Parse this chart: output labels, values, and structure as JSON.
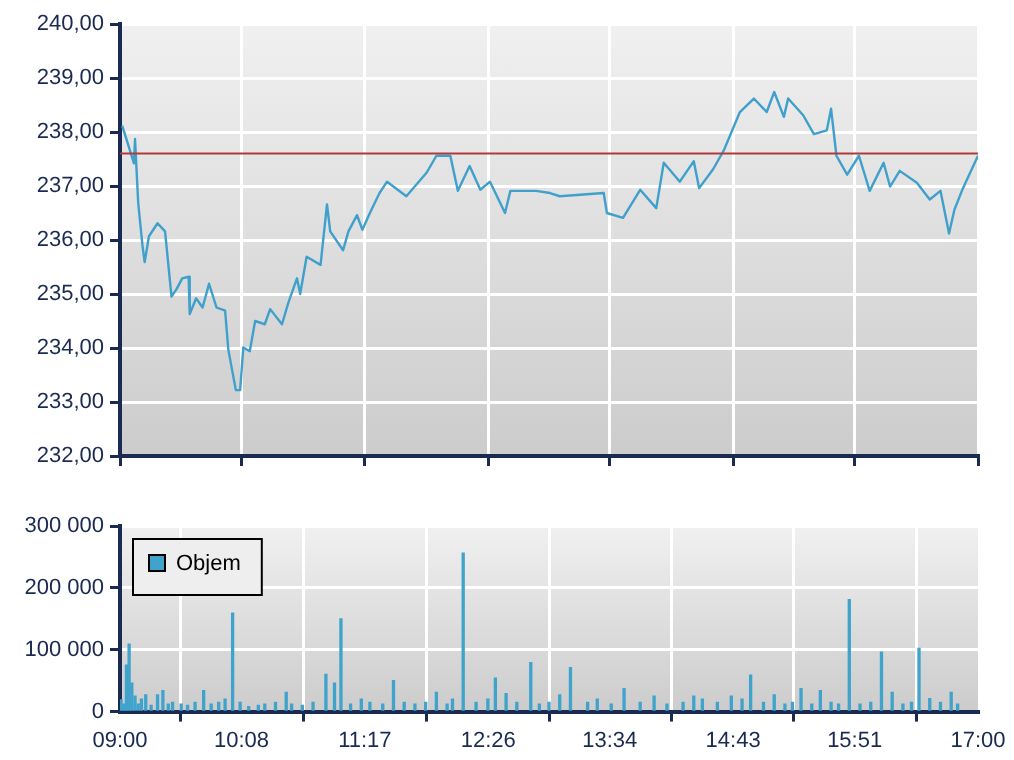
{
  "chart_data": [
    {
      "type": "line",
      "x": [
        9.02,
        9.06,
        9.13,
        9.14,
        9.17,
        9.21,
        9.23,
        9.27,
        9.35,
        9.42,
        9.45,
        9.48,
        9.53,
        9.58,
        9.64,
        9.65,
        9.71,
        9.77,
        9.83,
        9.9,
        9.98,
        10.01,
        10.08,
        10.12,
        10.15,
        10.21,
        10.26,
        10.35,
        10.4,
        10.51,
        10.57,
        10.65,
        10.68,
        10.74,
        10.87,
        10.93,
        10.96,
        11.08,
        11.13,
        11.21,
        11.26,
        11.33,
        11.42,
        11.49,
        11.67,
        11.86,
        11.95,
        12.08,
        12.15,
        12.26,
        12.36,
        12.45,
        12.59,
        12.64,
        12.88,
        13.01,
        13.1,
        13.51,
        13.54,
        13.69,
        13.85,
        14.0,
        14.07,
        14.22,
        14.35,
        14.4,
        14.53,
        14.63,
        14.78,
        14.91,
        15.03,
        15.1,
        15.19,
        15.23,
        15.37,
        15.47,
        15.59,
        15.63,
        15.68,
        15.78,
        15.89,
        15.99,
        16.12,
        16.18,
        16.27,
        16.43,
        16.55,
        16.65,
        16.73,
        16.78,
        16.86,
        17.0
      ],
      "values": [
        238.12,
        237.87,
        237.42,
        237.87,
        236.68,
        235.89,
        235.59,
        236.07,
        236.31,
        236.16,
        235.56,
        234.95,
        235.1,
        235.29,
        235.32,
        234.63,
        234.92,
        234.75,
        235.19,
        234.75,
        234.69,
        233.97,
        233.22,
        233.22,
        234.01,
        233.94,
        234.5,
        234.44,
        234.72,
        234.44,
        234.84,
        235.29,
        235.0,
        235.69,
        235.54,
        236.66,
        236.16,
        235.81,
        236.16,
        236.46,
        236.19,
        236.5,
        236.87,
        237.08,
        236.81,
        237.25,
        237.56,
        237.56,
        236.91,
        237.37,
        236.93,
        237.08,
        236.5,
        236.91,
        236.91,
        236.87,
        236.81,
        236.87,
        236.5,
        236.41,
        236.93,
        236.59,
        237.43,
        237.08,
        237.46,
        236.96,
        237.31,
        237.66,
        238.37,
        238.62,
        238.37,
        238.74,
        238.28,
        238.62,
        238.31,
        237.96,
        238.03,
        238.43,
        237.56,
        237.21,
        237.56,
        236.91,
        237.43,
        236.99,
        237.28,
        237.06,
        236.75,
        236.91,
        236.12,
        236.56,
        236.96,
        237.56
      ],
      "color": "#3fa0cc",
      "xlim": [
        9,
        17
      ],
      "xticks": [
        {
          "value": 9,
          "label": null
        },
        {
          "value": 10.1333,
          "label": null
        },
        {
          "value": 11.2833,
          "label": null
        },
        {
          "value": 12.4333,
          "label": null
        },
        {
          "value": 13.5667,
          "label": null
        },
        {
          "value": 14.7167,
          "label": null
        },
        {
          "value": 15.85,
          "label": null
        },
        {
          "value": 17,
          "label": null
        }
      ],
      "ylim": [
        232,
        240
      ],
      "yticks": [
        {
          "value": 232,
          "label": "232,00"
        },
        {
          "value": 233,
          "label": "233,00"
        },
        {
          "value": 234,
          "label": "234,00"
        },
        {
          "value": 235,
          "label": "235,00"
        },
        {
          "value": 236,
          "label": "236,00"
        },
        {
          "value": 237,
          "label": "237,00"
        },
        {
          "value": 238,
          "label": "238,00"
        },
        {
          "value": 239,
          "label": "239,00"
        },
        {
          "value": 240,
          "label": "240,00"
        }
      ],
      "ref_lines": [
        {
          "axis": "y",
          "value": 237.6,
          "color": "#b03a3a"
        }
      ],
      "tick_labels": "y",
      "grid": true,
      "legend": false
    },
    {
      "type": "bar",
      "series": [
        {
          "name": "Objem",
          "color": "#3fa3cc",
          "x": [
            9.01,
            9.035,
            9.06,
            9.085,
            9.11,
            9.14,
            9.17,
            9.2,
            9.24,
            9.29,
            9.35,
            9.4,
            9.45,
            9.49,
            9.57,
            9.63,
            9.7,
            9.78,
            9.85,
            9.92,
            9.98,
            10.05,
            10.12,
            10.2,
            10.29,
            10.35,
            10.45,
            10.55,
            10.6,
            10.7,
            10.8,
            10.92,
            11.0,
            11.06,
            11.15,
            11.25,
            11.33,
            11.45,
            11.55,
            11.65,
            11.75,
            11.85,
            11.95,
            12.05,
            12.1,
            12.2,
            12.32,
            12.43,
            12.5,
            12.6,
            12.7,
            12.83,
            12.91,
            13.0,
            13.1,
            13.2,
            13.36,
            13.45,
            13.58,
            13.7,
            13.85,
            13.98,
            14.1,
            14.25,
            14.35,
            14.43,
            14.57,
            14.7,
            14.8,
            14.88,
            15.0,
            15.1,
            15.2,
            15.27,
            15.35,
            15.45,
            15.53,
            15.63,
            15.7,
            15.8,
            15.9,
            16.0,
            16.1,
            16.2,
            16.3,
            16.38,
            16.45,
            16.55,
            16.65,
            16.75,
            16.81
          ],
          "values": [
            19000,
            12000,
            75000,
            109000,
            46000,
            25000,
            12000,
            20000,
            27000,
            10000,
            27000,
            34000,
            12000,
            15000,
            12000,
            10000,
            15000,
            34000,
            12000,
            15000,
            20000,
            159000,
            15000,
            8000,
            10000,
            12000,
            15000,
            31000,
            12000,
            10000,
            15000,
            60000,
            46000,
            150000,
            12000,
            20000,
            15000,
            12000,
            50000,
            15000,
            12000,
            15000,
            31000,
            12000,
            20000,
            256000,
            15000,
            20000,
            54000,
            29000,
            15000,
            79000,
            12000,
            15000,
            27000,
            71000,
            15000,
            20000,
            12000,
            37000,
            15000,
            25000,
            12000,
            15000,
            25000,
            20000,
            15000,
            25000,
            20000,
            59000,
            15000,
            27000,
            12000,
            15000,
            37000,
            12000,
            34000,
            15000,
            12000,
            181000,
            12000,
            15000,
            96000,
            31000,
            12000,
            15000,
            102000,
            21000,
            15000,
            31000,
            12000
          ]
        }
      ],
      "xlim": [
        9,
        17
      ],
      "xticks": [
        {
          "value": 9,
          "label": "09:00"
        },
        {
          "value": 10.1333,
          "label": "10:08"
        },
        {
          "value": 11.2833,
          "label": "11:17"
        },
        {
          "value": 12.4333,
          "label": "12:26"
        },
        {
          "value": 13.5667,
          "label": "13:34"
        },
        {
          "value": 14.7167,
          "label": "14:43"
        },
        {
          "value": 15.85,
          "label": "15:51"
        },
        {
          "value": 17,
          "label": "17:00"
        }
      ],
      "ylim": [
        0,
        300000
      ],
      "yticks": [
        {
          "value": 0,
          "label": "0"
        },
        {
          "value": 100000,
          "label": "100 000"
        },
        {
          "value": 200000,
          "label": "200 000"
        },
        {
          "value": 300000,
          "label": "300 000"
        }
      ],
      "grid": true,
      "legend": "top left"
    }
  ]
}
